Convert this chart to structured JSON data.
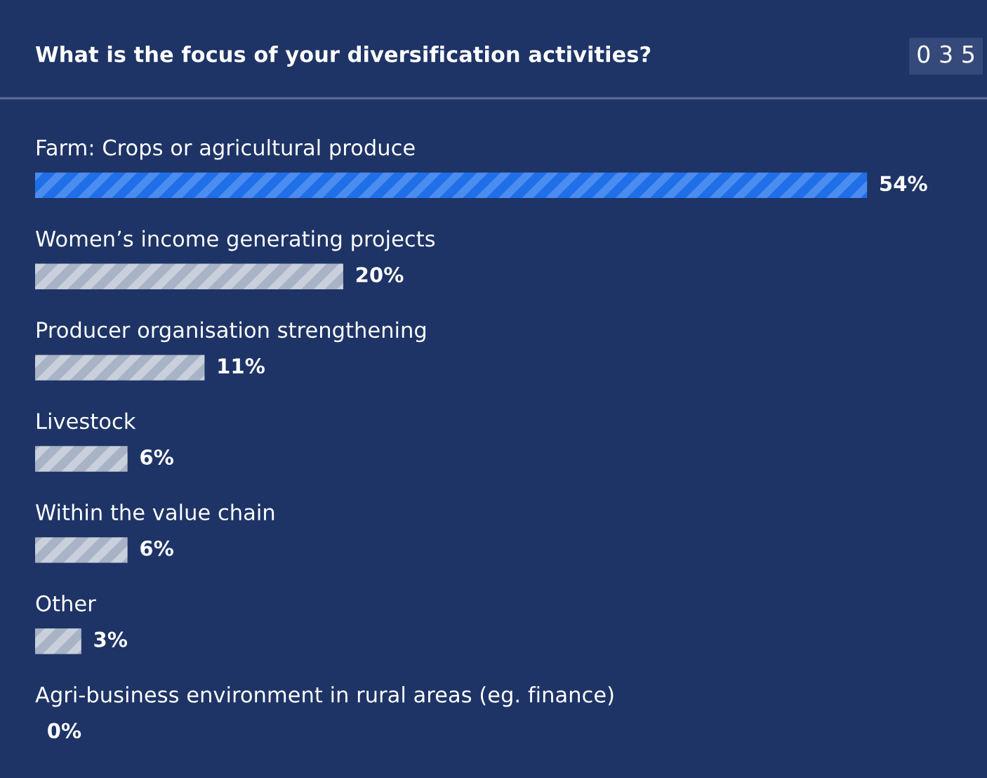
{
  "chart_data": {
    "type": "bar",
    "orientation": "horizontal",
    "title": "What is the focus of your diversification activities?",
    "categories": [
      "Farm: Crops or agricultural produce",
      "Women’s income generating projects",
      "Producer organisation strengthening",
      "Livestock",
      "Within the value chain",
      "Other",
      "Agri-business environment in rural areas (eg. finance)"
    ],
    "values": [
      54,
      20,
      11,
      6,
      6,
      3,
      0
    ],
    "colors": [
      "#1f6fe8",
      "#a9b3c6",
      "#a9b3c6",
      "#a9b3c6",
      "#a9b3c6",
      "#a9b3c6",
      "#a9b3c6"
    ],
    "value_labels": [
      "54%",
      "20%",
      "11%",
      "6%",
      "6%",
      "3%",
      "0%"
    ],
    "annotations": [
      "0 3 5"
    ]
  }
}
